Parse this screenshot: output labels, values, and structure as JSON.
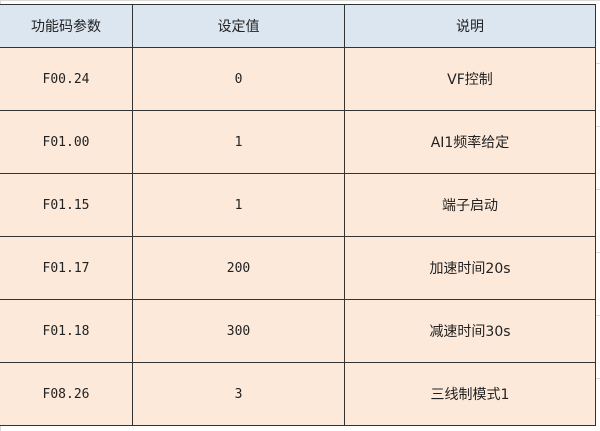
{
  "table": {
    "headers": [
      "功能码参数",
      "设定值",
      "说明"
    ],
    "rows": [
      [
        "F00.24",
        "0",
        "VF控制"
      ],
      [
        "F01.00",
        "1",
        "AI1频率给定"
      ],
      [
        "F01.15",
        "1",
        "端子启动"
      ],
      [
        "F01.17",
        "200",
        "加速时间20s"
      ],
      [
        "F01.18",
        "300",
        "减速时间30s"
      ],
      [
        "F08.26",
        "3",
        "三线制模式1"
      ]
    ]
  },
  "colors": {
    "header_bg": "#dce6f1",
    "cell_bg": "#fde9d9",
    "border": "#333333"
  }
}
